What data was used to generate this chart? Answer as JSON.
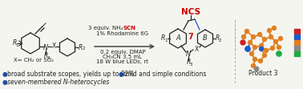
{
  "background_color": "#f5f5f0",
  "bullet_color": "#1f4e9c",
  "bullet_points_left": [
    "broad substrate scopes, yields up to 82%",
    "seven-membered N-heterocycles"
  ],
  "bullet_points_right": [
    "mild and simple conditions"
  ],
  "bullet_fontsize": 5.5,
  "reaction_conditions_left": "3 equiv. NH₄",
  "reaction_conditions_scn": "SCN",
  "reaction_conditions_rest": [
    "1% Rhodamine 6G",
    "0.2 equiv. DMAP",
    "CH₃CN 3.5 mL",
    "18 W blue LEDs, rt"
  ],
  "scn_color": "#cc0000",
  "nh4scn_highlight": "#cc0000",
  "product_label": "Product 3",
  "dashed_line_color": "#aaaaaa",
  "arrow_color": "#444444",
  "struct_line_color": "#222222",
  "blue_label_color": "#2255cc",
  "seven_label_color": "#cc0000",
  "text_color": "#222222",
  "italic_N": true
}
